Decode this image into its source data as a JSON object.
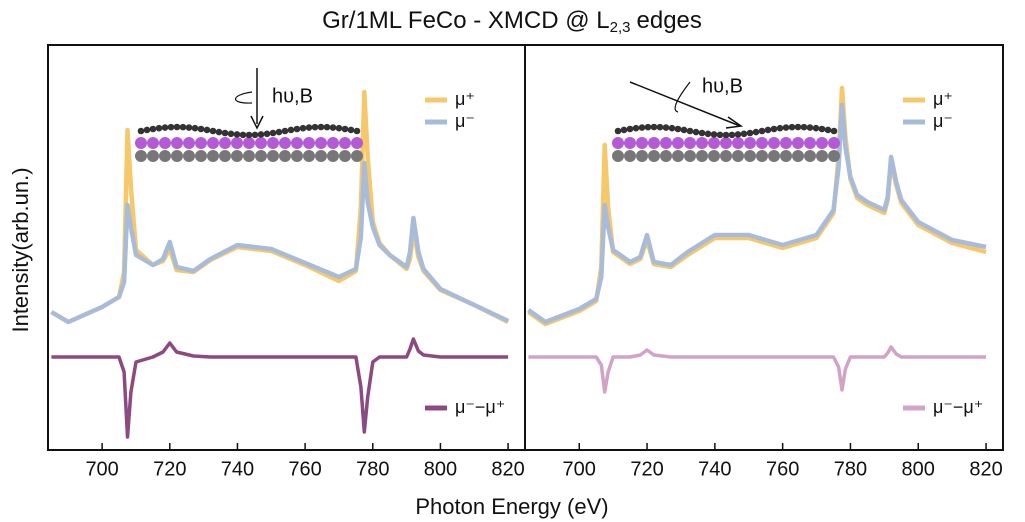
{
  "title": {
    "main": "Gr/1ML FeCo - XMCD @ L",
    "sub": "2,3",
    "end": "edges"
  },
  "xlabel": "Photon Energy (eV)",
  "ylabel": "Intensity(arb.un.)",
  "chart_data": [
    {
      "type": "line",
      "annotation": "hυ,B",
      "xlim": [
        684,
        825
      ],
      "xticks": [
        700,
        720,
        740,
        760,
        780,
        800,
        820
      ],
      "ylim": [
        -0.93,
        3.12
      ],
      "x": [
        685,
        690,
        700,
        705,
        706.5,
        707.5,
        708.5,
        710,
        715,
        718,
        720,
        722,
        727,
        732,
        740,
        750,
        760,
        770,
        775,
        776.5,
        777.5,
        778.5,
        780,
        782,
        785,
        790,
        791,
        792,
        793.5,
        795,
        800,
        810,
        820
      ],
      "series": [
        {
          "name": "μ⁺",
          "color": "#f7c86a",
          "values": [
            0.45,
            0.35,
            0.5,
            0.6,
            0.85,
            2.27,
            1.7,
            1.07,
            0.92,
            0.96,
            1.08,
            0.87,
            0.85,
            0.97,
            1.1,
            1.06,
            0.92,
            0.76,
            0.86,
            1.5,
            2.65,
            2.0,
            1.35,
            1.14,
            1.02,
            0.88,
            0.98,
            1.27,
            1.0,
            0.86,
            0.67,
            0.52,
            0.35
          ]
        },
        {
          "name": "μ⁻",
          "color": "#a8bcd9",
          "values": [
            0.45,
            0.35,
            0.5,
            0.6,
            0.75,
            1.52,
            1.3,
            1.02,
            0.92,
            0.98,
            1.15,
            0.9,
            0.86,
            0.98,
            1.12,
            1.08,
            0.94,
            0.8,
            0.88,
            1.2,
            1.94,
            1.55,
            1.3,
            1.12,
            1.02,
            0.9,
            1.05,
            1.39,
            1.05,
            0.88,
            0.68,
            0.52,
            0.36
          ]
        },
        {
          "name": "μ⁻−μ⁺",
          "color": "#8c4a80",
          "values": [
            0,
            0,
            0,
            0,
            -0.15,
            -0.8,
            -0.35,
            -0.05,
            0,
            0.05,
            0.14,
            0.05,
            0.01,
            0,
            0,
            0,
            0,
            0,
            0,
            -0.3,
            -0.75,
            -0.4,
            -0.05,
            0,
            0,
            0,
            0.08,
            0.18,
            0.06,
            0.02,
            0,
            0,
            0
          ]
        }
      ]
    },
    {
      "type": "line",
      "annotation": "hυ,B",
      "xlim": [
        684,
        825
      ],
      "xticks": [
        700,
        720,
        740,
        760,
        780,
        800,
        820
      ],
      "ylim": [
        -0.93,
        3.12
      ],
      "x": [
        685,
        690,
        700,
        705,
        706.5,
        707.5,
        708.5,
        710,
        715,
        718,
        720,
        722,
        727,
        732,
        740,
        750,
        760,
        770,
        775,
        776.5,
        777.5,
        778.5,
        780,
        782,
        785,
        790,
        791,
        792,
        793.5,
        795,
        800,
        810,
        820
      ],
      "series": [
        {
          "name": "μ⁺",
          "color": "#f7c86a",
          "values": [
            0.45,
            0.33,
            0.46,
            0.56,
            0.9,
            2.12,
            1.5,
            1.05,
            0.93,
            0.98,
            1.17,
            0.93,
            0.9,
            1.02,
            1.19,
            1.19,
            1.09,
            1.19,
            1.44,
            2.0,
            2.69,
            2.2,
            1.78,
            1.59,
            1.52,
            1.44,
            1.57,
            1.95,
            1.72,
            1.54,
            1.32,
            1.14,
            1.05
          ]
        },
        {
          "name": "μ⁻",
          "color": "#a8bcd9",
          "values": [
            0.47,
            0.35,
            0.48,
            0.58,
            0.8,
            1.52,
            1.3,
            1.07,
            0.95,
            1.0,
            1.22,
            0.95,
            0.92,
            1.05,
            1.22,
            1.22,
            1.12,
            1.22,
            1.47,
            1.9,
            2.52,
            2.1,
            1.8,
            1.62,
            1.55,
            1.47,
            1.6,
            2.0,
            1.75,
            1.57,
            1.35,
            1.17,
            1.1
          ]
        },
        {
          "name": "μ⁻−μ⁺",
          "color": "#d1a3c6",
          "values": [
            0,
            0,
            0,
            0,
            -0.08,
            -0.35,
            -0.15,
            0,
            0,
            0.02,
            0.07,
            0.02,
            0,
            0,
            0,
            0,
            0,
            0,
            0,
            -0.1,
            -0.33,
            -0.12,
            0,
            0,
            0,
            0,
            0.04,
            0.1,
            0.03,
            0,
            0,
            0,
            0
          ]
        }
      ]
    }
  ]
}
